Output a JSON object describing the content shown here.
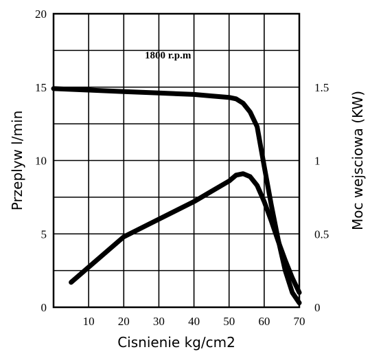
{
  "chart_data": {
    "type": "line",
    "annotation": "1800 r.p.m",
    "xlabel": "Cisnienie kg/cm2",
    "ylabel_left": "Przeplyw l/min",
    "ylabel_right": "Moc wejsciowa (KW)",
    "xlim": [
      0,
      70
    ],
    "ylim_left": [
      0,
      20
    ],
    "ylim_right": [
      0,
      2.0
    ],
    "grid": true,
    "x_ticks": [
      "10",
      "20",
      "30",
      "40",
      "50",
      "60",
      "70"
    ],
    "y_left_ticks": [
      "0",
      "5",
      "10",
      "15",
      "20"
    ],
    "y_right_ticks": [
      "0",
      "0.5",
      "1",
      "1.5"
    ],
    "series": [
      {
        "axis": "left",
        "x": [
          0,
          10,
          20,
          30,
          40,
          45,
          50,
          52,
          54,
          56,
          58,
          60,
          62,
          64,
          66,
          68,
          70
        ],
        "y": [
          14.9,
          14.8,
          14.7,
          14.6,
          14.5,
          14.4,
          14.3,
          14.2,
          13.9,
          13.3,
          12.3,
          9.6,
          7.0,
          4.6,
          2.5,
          1.0,
          0.3
        ]
      },
      {
        "axis": "right",
        "x": [
          5,
          20,
          30,
          40,
          45,
          50,
          52,
          54,
          56,
          58,
          60,
          62,
          64,
          66,
          68,
          70
        ],
        "y": [
          0.17,
          0.48,
          0.6,
          0.72,
          0.79,
          0.86,
          0.9,
          0.91,
          0.89,
          0.83,
          0.72,
          0.59,
          0.45,
          0.32,
          0.2,
          0.1
        ]
      }
    ]
  }
}
